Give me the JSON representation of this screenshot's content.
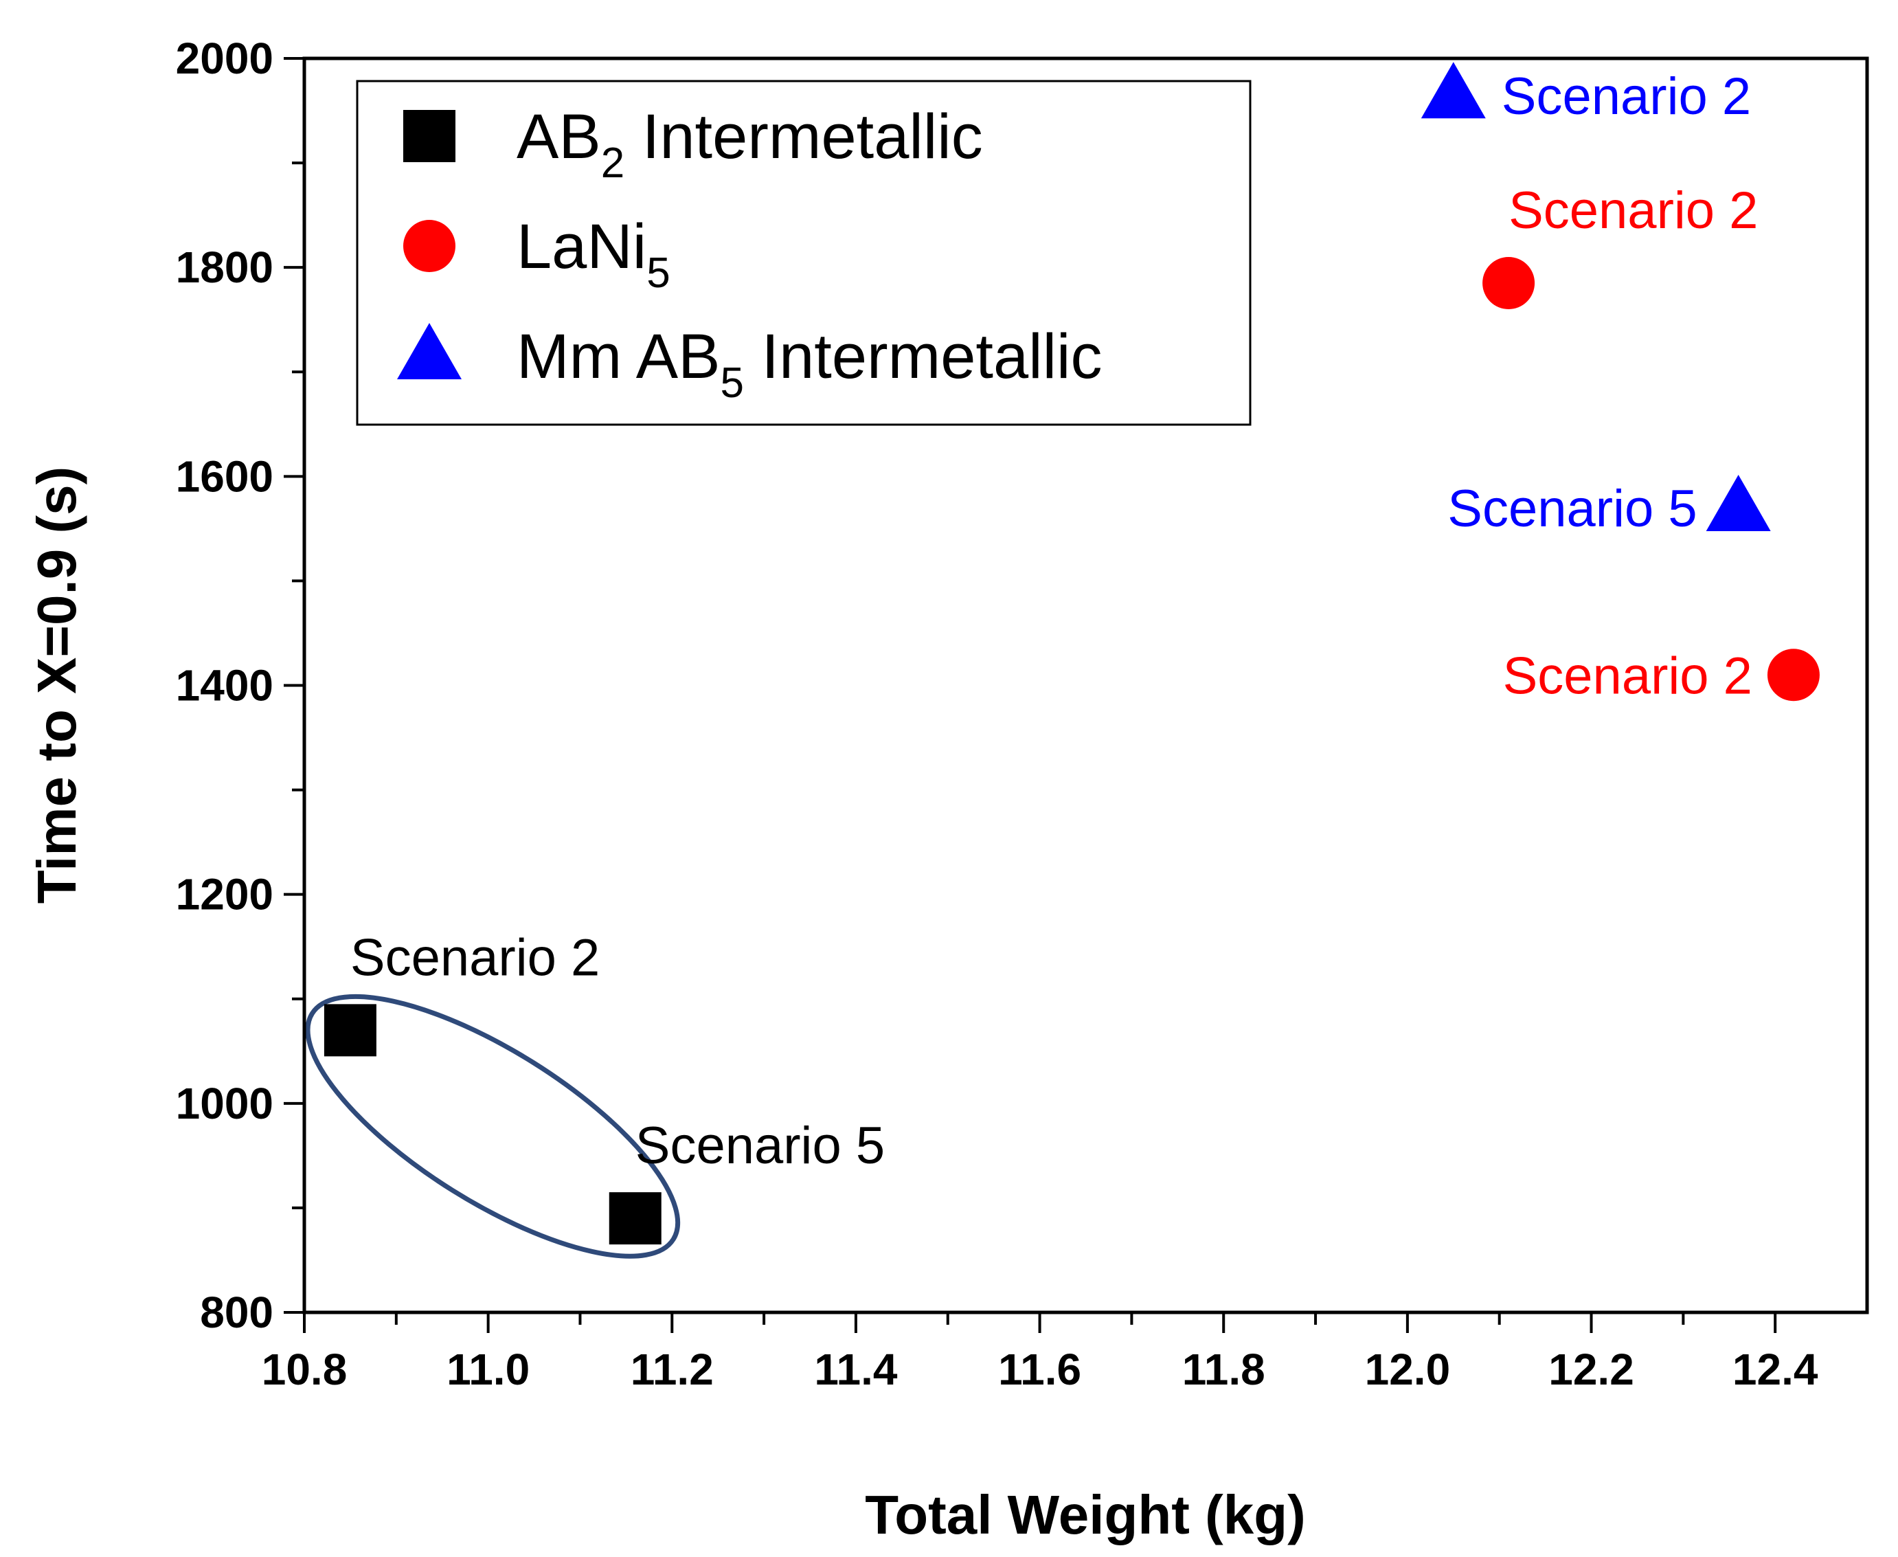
{
  "chart_data": {
    "type": "scatter",
    "title": "",
    "xlabel": "Total Weight (kg)",
    "ylabel": "Time to X=0.9 (s)",
    "xlim": [
      10.8,
      12.5
    ],
    "ylim": [
      800,
      2000
    ],
    "xticks": [
      10.8,
      11.0,
      11.2,
      11.4,
      11.6,
      11.8,
      12.0,
      12.2,
      12.4
    ],
    "xtick_labels": [
      "10.8",
      "11.0",
      "11.2",
      "11.4",
      "11.6",
      "11.8",
      "12.0",
      "12.2",
      "12.4"
    ],
    "yticks": [
      800,
      1000,
      1200,
      1400,
      1600,
      1800,
      2000
    ],
    "ytick_labels": [
      "800",
      "1000",
      "1200",
      "1400",
      "1600",
      "1800",
      "2000"
    ],
    "grid": false,
    "legend_position": "top-left",
    "series": [
      {
        "name": "AB2 Intermetallic",
        "legend_main": "AB",
        "legend_sub": "2",
        "legend_rest": " Intermetallic",
        "marker": "square",
        "color": "#000000",
        "points": [
          {
            "x": 10.85,
            "y": 1070,
            "label": "Scenario 2",
            "label_pos": "above-right"
          },
          {
            "x": 11.16,
            "y": 890,
            "label": "Scenario 5",
            "label_pos": "above-right"
          }
        ]
      },
      {
        "name": "LaNi5",
        "legend_main": "LaNi",
        "legend_sub": "5",
        "legend_rest": "",
        "marker": "circle",
        "color": "#ff0000",
        "points": [
          {
            "x": 12.11,
            "y": 1785,
            "label": "Scenario 2",
            "label_pos": "above-right"
          },
          {
            "x": 12.42,
            "y": 1410,
            "label": "Scenario 2",
            "label_pos": "left"
          }
        ]
      },
      {
        "name": "Mm AB5 Intermetallic",
        "legend_main": "Mm AB",
        "legend_sub": "5",
        "legend_rest": " Intermetallic",
        "marker": "triangle",
        "color": "#0000ff",
        "points": [
          {
            "x": 12.05,
            "y": 1965,
            "label": "Scenario 2",
            "label_pos": "right"
          },
          {
            "x": 12.36,
            "y": 1570,
            "label": "Scenario 5",
            "label_pos": "left"
          }
        ]
      }
    ],
    "annotations": [
      {
        "type": "ellipse",
        "description": "encloses AB2 points",
        "center_x": 11.005,
        "center_y": 978,
        "color": "#2f4a7a"
      }
    ]
  }
}
